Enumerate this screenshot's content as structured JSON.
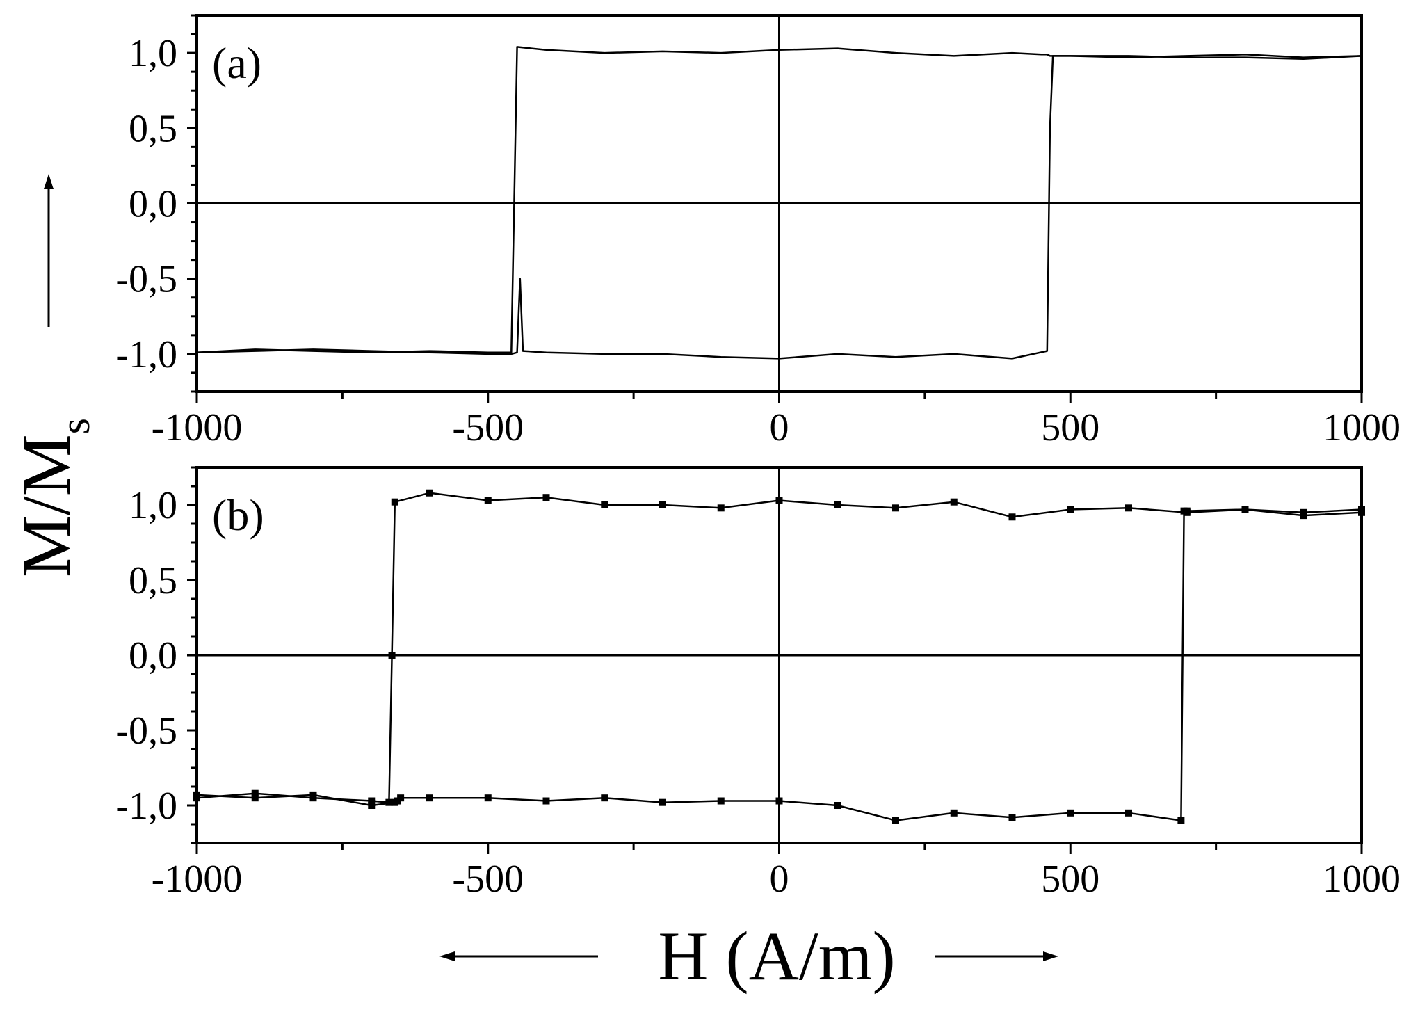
{
  "chart_data": [
    {
      "panel": "(a)",
      "type": "line",
      "xlim": [
        -1000,
        1000
      ],
      "ylim": [
        -1.25,
        1.25
      ],
      "x_ticks": [
        -1000,
        -500,
        0,
        500,
        1000
      ],
      "x_tick_labels": [
        "-1000",
        "-500",
        "0",
        "500",
        "1000"
      ],
      "y_ticks": [
        1.0,
        0.5,
        0.0,
        -0.5,
        -1.0
      ],
      "y_tick_labels": [
        "1,0",
        "0,5",
        "0,0",
        "-0,5",
        "-1,0"
      ],
      "grid": false,
      "markers": false,
      "coercive_field": [
        -450,
        465
      ],
      "series": [
        {
          "branch": "descending",
          "x": [
            1000,
            900,
            800,
            700,
            600,
            500,
            470,
            465,
            460,
            400,
            300,
            200,
            100,
            0,
            -100,
            -200,
            -300,
            -400,
            -440,
            -445,
            -450,
            -460,
            -500,
            -600,
            -700,
            -800,
            -900,
            -1000
          ],
          "y": [
            0.98,
            0.97,
            0.99,
            0.98,
            0.97,
            0.98,
            0.98,
            0.5,
            -0.98,
            -1.03,
            -1.0,
            -1.02,
            -1.0,
            -1.03,
            -1.02,
            -1.0,
            -1.0,
            -0.99,
            -0.98,
            -0.5,
            -0.99,
            -1.0,
            -1.0,
            -0.99,
            -0.98,
            -0.97,
            -0.98,
            -0.99
          ]
        },
        {
          "branch": "ascending",
          "x": [
            -1000,
            -900,
            -800,
            -700,
            -600,
            -500,
            -460,
            -455,
            -450,
            -400,
            -300,
            -200,
            -100,
            0,
            100,
            200,
            300,
            400,
            450,
            460,
            465,
            500,
            600,
            700,
            800,
            900,
            1000
          ],
          "y": [
            -0.99,
            -0.97,
            -0.98,
            -0.99,
            -0.98,
            -0.99,
            -0.99,
            0.0,
            1.04,
            1.02,
            1.0,
            1.01,
            1.0,
            1.02,
            1.03,
            1.0,
            0.98,
            1.0,
            0.99,
            0.99,
            0.98,
            0.98,
            0.98,
            0.97,
            0.97,
            0.96,
            0.98
          ]
        }
      ]
    },
    {
      "panel": "(b)",
      "type": "line",
      "xlim": [
        -1000,
        1000
      ],
      "ylim": [
        -1.25,
        1.25
      ],
      "x_ticks": [
        -1000,
        -500,
        0,
        500,
        1000
      ],
      "x_tick_labels": [
        "-1000",
        "-500",
        "0",
        "500",
        "1000"
      ],
      "y_ticks": [
        1.0,
        0.5,
        0.0,
        -0.5,
        -1.0
      ],
      "y_tick_labels": [
        "1,0",
        "0,5",
        "0,0",
        "-0,5",
        "-1,0"
      ],
      "grid": false,
      "markers": true,
      "coercive_field": [
        -660,
        690
      ],
      "series": [
        {
          "branch": "descending",
          "x": [
            1000,
            900,
            800,
            700,
            695,
            690,
            600,
            500,
            400,
            300,
            200,
            100,
            0,
            -100,
            -200,
            -300,
            -400,
            -500,
            -600,
            -650,
            -655,
            -660,
            -700,
            -800,
            -900,
            -1000
          ],
          "y": [
            0.95,
            0.93,
            0.97,
            0.96,
            0.96,
            -1.1,
            -1.05,
            -1.05,
            -1.08,
            -1.05,
            -1.1,
            -1.0,
            -0.97,
            -0.97,
            -0.98,
            -0.95,
            -0.97,
            -0.95,
            -0.95,
            -0.95,
            -0.97,
            -0.98,
            -1.0,
            -0.93,
            -0.95,
            -0.93
          ]
        },
        {
          "branch": "ascending",
          "x": [
            -1000,
            -900,
            -800,
            -700,
            -670,
            -665,
            -660,
            -600,
            -500,
            -400,
            -300,
            -200,
            -100,
            0,
            100,
            200,
            300,
            400,
            500,
            600,
            700,
            800,
            900,
            1000
          ],
          "y": [
            -0.95,
            -0.92,
            -0.95,
            -0.97,
            -0.98,
            0.0,
            1.02,
            1.08,
            1.03,
            1.05,
            1.0,
            1.0,
            0.98,
            1.03,
            1.0,
            0.98,
            1.02,
            0.92,
            0.97,
            0.98,
            0.95,
            0.97,
            0.95,
            0.97
          ]
        }
      ]
    }
  ],
  "y_axis_title": "M/M",
  "y_axis_title_subscript": "s",
  "x_axis_title": "H (A/m)",
  "panel_labels": [
    "(a)",
    "(b)"
  ]
}
